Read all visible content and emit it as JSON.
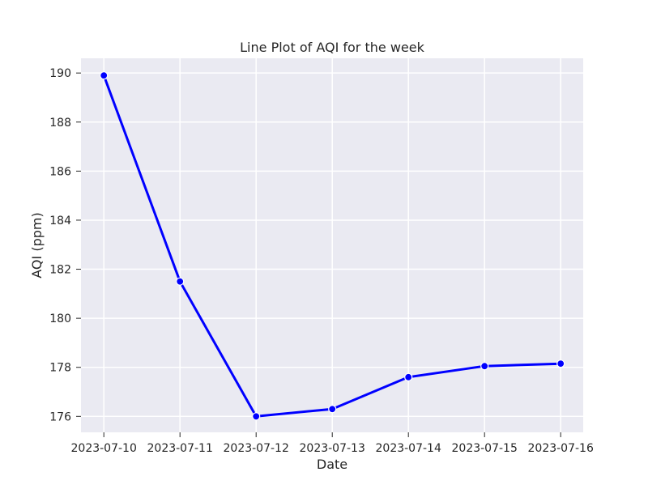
{
  "chart_data": {
    "type": "line",
    "title": "Line Plot of AQI for the week",
    "xlabel": "Date",
    "ylabel": "AQI (ppm)",
    "categories": [
      "2023-07-10",
      "2023-07-11",
      "2023-07-12",
      "2023-07-13",
      "2023-07-14",
      "2023-07-15",
      "2023-07-16"
    ],
    "series": [
      {
        "values": [
          189.9,
          181.5,
          176.0,
          176.3,
          177.6,
          178.05,
          178.15
        ],
        "color": "#0000ff",
        "marker": "circle"
      }
    ],
    "ylim": [
      175.35,
      190.6
    ],
    "yticks": [
      "176",
      "178",
      "180",
      "182",
      "184",
      "186",
      "188",
      "190"
    ],
    "grid": true,
    "style": {
      "plot_background": "#eaeaf2",
      "grid_color": "#ffffff",
      "text_color": "#262626"
    }
  }
}
